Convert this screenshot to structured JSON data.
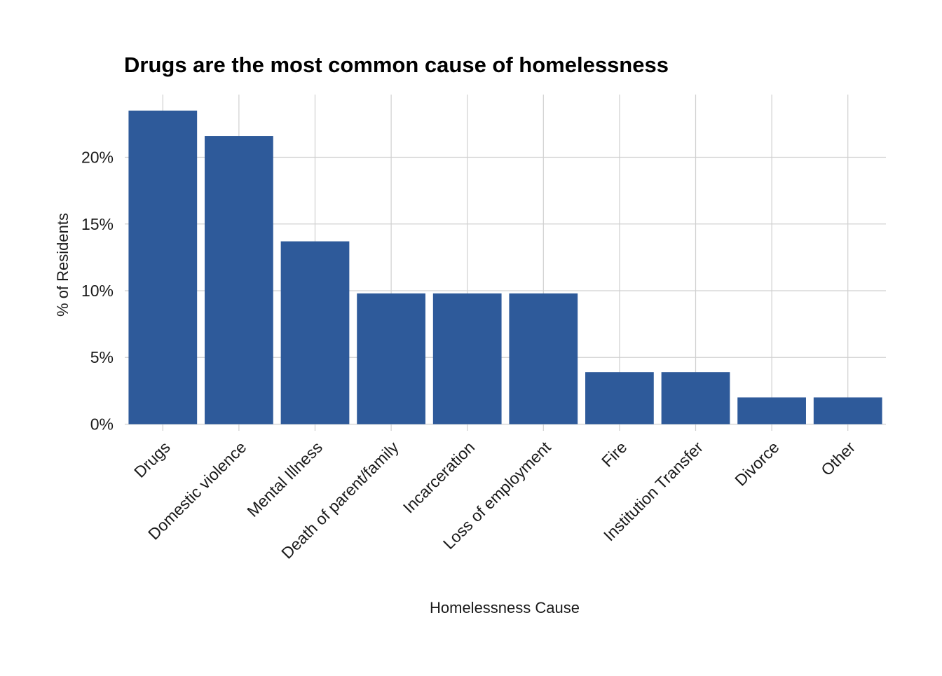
{
  "chart_data": {
    "type": "bar",
    "title": "Drugs are the most common cause of homelessness",
    "xlabel": "Homelessness Cause",
    "ylabel": "% of Residents",
    "categories": [
      "Drugs",
      "Domestic violence",
      "Mental Illness",
      "Death of parent/family",
      "Incarceration",
      "Loss of employment",
      "Fire",
      "Institution Transfer",
      "Divorce",
      "Other"
    ],
    "values": [
      23.5,
      21.6,
      13.7,
      9.8,
      9.8,
      9.8,
      3.9,
      3.9,
      2.0,
      2.0
    ],
    "y_ticks": [
      0,
      5,
      10,
      15,
      20
    ],
    "y_tick_labels": [
      "0%",
      "5%",
      "10%",
      "15%",
      "20%"
    ],
    "ylim": [
      -0.5,
      24.7
    ],
    "grid": true,
    "legend": "none",
    "bar_color": "#2e5a9a",
    "grid_color": "#d0d0d0"
  }
}
